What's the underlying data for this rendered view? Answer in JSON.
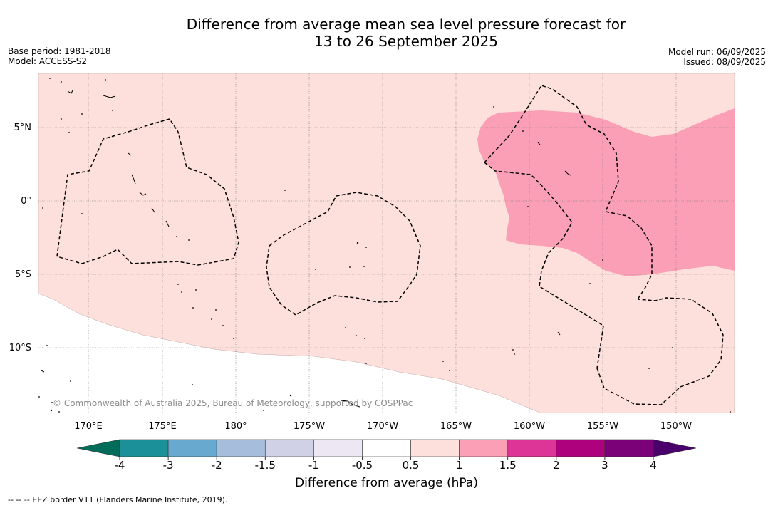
{
  "title": {
    "line1": "Difference from average mean sea level pressure forecast for",
    "line2": "13 to 26 September 2025"
  },
  "meta": {
    "base_period": "Base period: 1981-2018",
    "model": "Model: ACCESS-S2",
    "model_run": "Model run: 06/09/2025",
    "issued": "Issued: 08/09/2025"
  },
  "map": {
    "lat_labels": [
      "5°N",
      "0°",
      "5°S",
      "10°S"
    ],
    "lon_labels": [
      "170°E",
      "175°E",
      "180°",
      "175°W",
      "170°W",
      "165°W",
      "160°W",
      "155°W",
      "150°W"
    ],
    "copyright": "© Commonwealth of Australia 2025, Bureau of Meteorology, supported by COSPPac",
    "fill_colors": {
      "0.5_to_1": "#fde0dc",
      "1_to_1.5": "#fa9fb5",
      "land_outline": "#000000"
    }
  },
  "colorbar": {
    "title": "Difference from average (hPa)",
    "ticks": [
      "-4",
      "-3",
      "-2",
      "-1.5",
      "-1",
      "-0.5",
      "0.5",
      "1",
      "1.5",
      "2",
      "3",
      "4"
    ],
    "under_color": "#016c59",
    "over_color": "#49006a",
    "colors": [
      "#1c9099",
      "#67a9cf",
      "#a6bddb",
      "#d0d1e6",
      "#ece7f2",
      "#ffffff",
      "#fde0dc",
      "#fa9fb5",
      "#dd3497",
      "#ae017e",
      "#7a0177"
    ]
  },
  "footnote": "--  --  -- EEZ border V11 (Flanders Marine Institute, 2019)."
}
